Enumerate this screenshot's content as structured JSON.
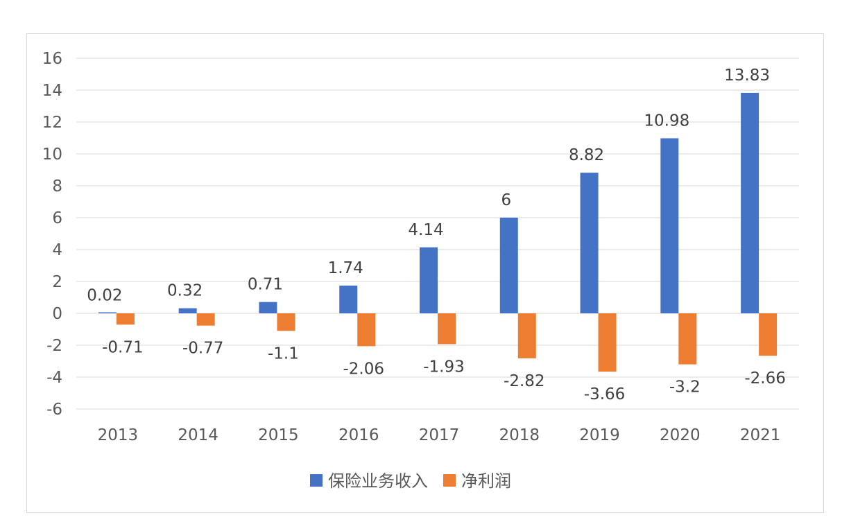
{
  "chart_data": {
    "type": "bar",
    "categories": [
      "2013",
      "2014",
      "2015",
      "2016",
      "2017",
      "2018",
      "2019",
      "2020",
      "2021"
    ],
    "series": [
      {
        "name": "保险业务收入",
        "color": "#4472C4",
        "values": [
          0.02,
          0.32,
          0.71,
          1.74,
          4.14,
          6,
          8.82,
          10.98,
          13.83
        ],
        "labels": [
          "0.02",
          "0.32",
          "0.71",
          "1.74",
          "4.14",
          "6",
          "8.82",
          "10.98",
          "13.83"
        ]
      },
      {
        "name": "净利润",
        "color": "#ED7D31",
        "values": [
          -0.71,
          -0.77,
          -1.1,
          -2.06,
          -1.93,
          -2.82,
          -3.66,
          -3.2,
          -2.66
        ],
        "labels": [
          "-0.71",
          "-0.77",
          "-1.1",
          "-2.06",
          "-1.93",
          "-2.82",
          "-3.66",
          "-3.2",
          "-2.66"
        ]
      }
    ],
    "title": "",
    "xlabel": "",
    "ylabel": "",
    "ylim": [
      -6,
      16
    ],
    "yticks": [
      -6,
      -4,
      -2,
      0,
      2,
      4,
      6,
      8,
      10,
      12,
      14,
      16
    ],
    "grid": true,
    "legend": "bottom"
  }
}
